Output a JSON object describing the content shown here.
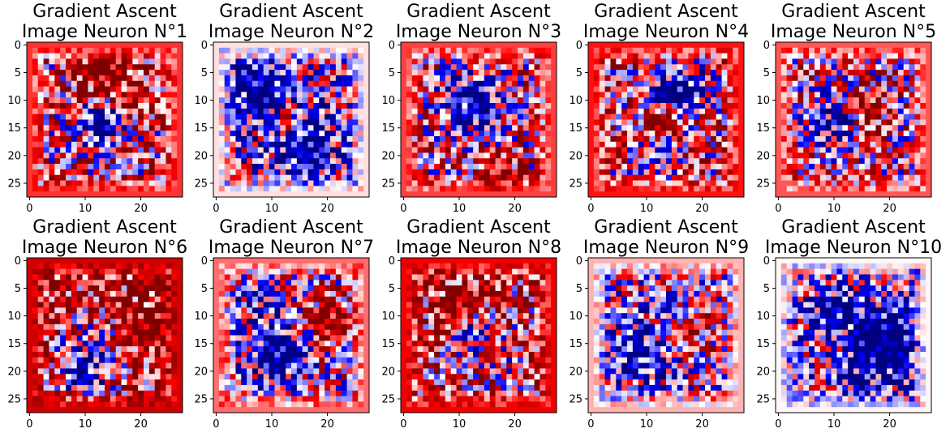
{
  "chart_data": [
    {
      "type": "heatmap",
      "title": "Gradient Ascent\nImage Neuron N°1",
      "colormap": "seismic",
      "size": [
        28,
        28
      ],
      "xticks": [
        "0",
        "10",
        "20"
      ],
      "yticks": [
        "0",
        "5",
        "10",
        "15",
        "20",
        "25"
      ],
      "pattern": {
        "seed": 1,
        "bias": 0.28,
        "blobs": [
          [
            14,
            13,
            3,
            -1.6
          ],
          [
            7,
            13,
            4,
            0.8
          ],
          [
            11,
            20,
            3,
            0.6
          ]
        ]
      }
    },
    {
      "type": "heatmap",
      "title": "Gradient Ascent\nImage Neuron N°2",
      "colormap": "seismic",
      "size": [
        28,
        28
      ],
      "xticks": [
        "0",
        "10",
        "20"
      ],
      "yticks": [
        "0",
        "5",
        "10",
        "15",
        "20",
        "25"
      ],
      "pattern": {
        "seed": 2,
        "bias": -0.1,
        "blobs": [
          [
            8,
            8,
            4,
            -1.0
          ],
          [
            18,
            16,
            4,
            -0.9
          ],
          [
            14,
            13,
            2,
            0.8
          ]
        ]
      }
    },
    {
      "type": "heatmap",
      "title": "Gradient Ascent\nImage Neuron N°3",
      "colormap": "seismic",
      "size": [
        28,
        28
      ],
      "xticks": [
        "0",
        "10",
        "20"
      ],
      "yticks": [
        "0",
        "5",
        "10",
        "15",
        "20",
        "25"
      ],
      "pattern": {
        "seed": 3,
        "bias": 0.25,
        "blobs": [
          [
            10,
            12,
            4,
            -1.1
          ],
          [
            24,
            17,
            3,
            0.9
          ]
        ]
      }
    },
    {
      "type": "heatmap",
      "title": "Gradient Ascent\nImage Neuron N°4",
      "colormap": "seismic",
      "size": [
        28,
        28
      ],
      "xticks": [
        "0",
        "10",
        "20"
      ],
      "yticks": [
        "0",
        "5",
        "10",
        "15",
        "20",
        "25"
      ],
      "pattern": {
        "seed": 4,
        "bias": 0.35,
        "blobs": [
          [
            8,
            16,
            4,
            -1.2
          ],
          [
            14,
            13,
            2,
            0.9
          ],
          [
            21,
            12,
            3,
            -0.6
          ]
        ]
      }
    },
    {
      "type": "heatmap",
      "title": "Gradient Ascent\nImage Neuron N°5",
      "colormap": "seismic",
      "size": [
        28,
        28
      ],
      "xticks": [
        "0",
        "10",
        "20"
      ],
      "yticks": [
        "0",
        "5",
        "10",
        "15",
        "20",
        "25"
      ],
      "pattern": {
        "seed": 5,
        "bias": 0.2,
        "blobs": [
          [
            14,
            10,
            3,
            -1.0
          ],
          [
            12,
            16,
            3,
            0.7
          ]
        ]
      }
    },
    {
      "type": "heatmap",
      "title": "Gradient Ascent\nImage Neuron N°6",
      "colormap": "seismic",
      "size": [
        28,
        28
      ],
      "xticks": [
        "0",
        "10",
        "20"
      ],
      "yticks": [
        "0",
        "5",
        "10",
        "15",
        "20",
        "25"
      ],
      "pattern": {
        "seed": 6,
        "bias": 0.6,
        "blobs": [
          [
            19,
            10,
            4,
            -1.4
          ],
          [
            12,
            22,
            3,
            0.7
          ]
        ]
      }
    },
    {
      "type": "heatmap",
      "title": "Gradient Ascent\nImage Neuron N°7",
      "colormap": "seismic",
      "size": [
        28,
        28
      ],
      "xticks": [
        "0",
        "10",
        "20"
      ],
      "yticks": [
        "0",
        "5",
        "10",
        "15",
        "20",
        "25"
      ],
      "pattern": {
        "seed": 7,
        "bias": 0.15,
        "blobs": [
          [
            17,
            11,
            4,
            -1.2
          ],
          [
            8,
            7,
            3,
            -0.6
          ],
          [
            11,
            20,
            3,
            0.8
          ]
        ]
      }
    },
    {
      "type": "heatmap",
      "title": "Gradient Ascent\nImage Neuron N°8",
      "colormap": "seismic",
      "size": [
        28,
        28
      ],
      "xticks": [
        "0",
        "10",
        "20"
      ],
      "yticks": [
        "0",
        "5",
        "10",
        "15",
        "20",
        "25"
      ],
      "pattern": {
        "seed": 8,
        "bias": 0.45,
        "blobs": [
          [
            13,
            12,
            3,
            -1.0
          ],
          [
            9,
            10,
            4,
            0.7
          ],
          [
            18,
            18,
            3,
            -0.5
          ]
        ]
      }
    },
    {
      "type": "heatmap",
      "title": "Gradient Ascent\nImage Neuron N°9",
      "colormap": "seismic",
      "size": [
        28,
        28
      ],
      "xticks": [
        "0",
        "10",
        "20"
      ],
      "yticks": [
        "0",
        "5",
        "10",
        "15",
        "20",
        "25"
      ],
      "pattern": {
        "seed": 9,
        "bias": 0.0,
        "blobs": [
          [
            17,
            9,
            4,
            -0.9
          ],
          [
            12,
            19,
            3,
            0.6
          ]
        ]
      }
    },
    {
      "type": "heatmap",
      "title": "Gradient Ascent\nImage Neuron N°10",
      "colormap": "seismic",
      "size": [
        28,
        28
      ],
      "xticks": [
        "0",
        "10",
        "20"
      ],
      "yticks": [
        "0",
        "5",
        "10",
        "15",
        "20",
        "25"
      ],
      "pattern": {
        "seed": 10,
        "bias": -0.15,
        "blobs": [
          [
            15,
            17,
            5,
            -1.2
          ],
          [
            10,
            9,
            3,
            -0.6
          ],
          [
            15,
            11,
            3,
            0.6
          ]
        ]
      }
    }
  ]
}
